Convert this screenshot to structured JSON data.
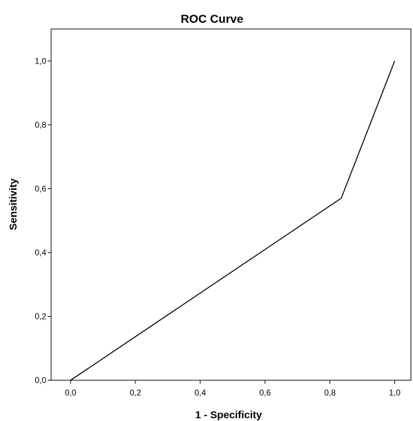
{
  "chart_data": {
    "type": "line",
    "title": "ROC Curve",
    "xlabel": "1 - Specificity",
    "ylabel": "Sensitivity",
    "xlim": [
      -0.06,
      1.05
    ],
    "ylim": [
      0.0,
      1.1
    ],
    "x_ticks": [
      "0,0",
      "0,2",
      "0,4",
      "0,6",
      "0,8",
      "1,0"
    ],
    "y_ticks": [
      "0,0",
      "0,2",
      "0,4",
      "0,6",
      "0,8",
      "1,0"
    ],
    "grid": false,
    "series": [
      {
        "x": [
          0.0,
          0.835,
          1.0
        ],
        "y": [
          0.0,
          0.57,
          1.0
        ]
      }
    ]
  }
}
